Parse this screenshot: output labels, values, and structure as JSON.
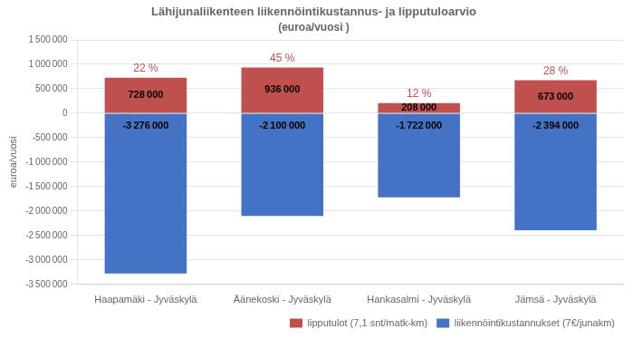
{
  "chart_data": {
    "type": "bar",
    "title": "Lähijunaliikenteen liikennöintikustannus- ja lipputuloarvio",
    "subtitle": "(euroa/vuosi )",
    "categories": [
      "Haapamäki - Jyväskylä",
      "Äänekoski - Jyväskylä",
      "Hankasalmi - Jyväskylä",
      "Jämsä - Jyväskylä"
    ],
    "series": [
      {
        "name": "lipputulot (7,1 snt/matk-km)",
        "color": "#C0504D",
        "values": [
          728000,
          936000,
          208000,
          673000
        ],
        "value_labels": [
          "728 000",
          "936 000",
          "208 000",
          "673 000"
        ],
        "annotations": [
          "22 %",
          "45 %",
          "12 %",
          "28 %"
        ]
      },
      {
        "name": "liikennöintikustannukset (7€/junakm)",
        "color": "#4472C4",
        "values": [
          -3276000,
          -2100000,
          -1722000,
          -2394000
        ],
        "value_labels": [
          "-3 276 000",
          "-2 100 000",
          "-1 722 000",
          "-2 394 000"
        ]
      }
    ],
    "ylabel": "euroa/vuosi",
    "ylim": [
      -3500000,
      1500000
    ],
    "yticks": [
      {
        "value": -3500000,
        "label": "-3 500 000"
      },
      {
        "value": -3000000,
        "label": "-3 000 000"
      },
      {
        "value": -2500000,
        "label": "-2 500 000"
      },
      {
        "value": -2000000,
        "label": "-2 000 000"
      },
      {
        "value": -1500000,
        "label": "-1 500 000"
      },
      {
        "value": -1000000,
        "label": "-1 000 000"
      },
      {
        "value": -500000,
        "label": "-500 000"
      },
      0,
      {
        "value": 500000,
        "label": "500 000"
      },
      {
        "value": 1000000,
        "label": "1 000 000"
      },
      {
        "value": 1500000,
        "label": "1 500 000"
      }
    ],
    "grid": true,
    "legend": "lower right",
    "stacked": true,
    "data_labels": true
  }
}
